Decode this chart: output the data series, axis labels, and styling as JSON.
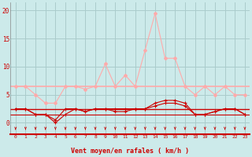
{
  "x": [
    0,
    1,
    2,
    3,
    4,
    5,
    6,
    7,
    8,
    9,
    10,
    11,
    12,
    13,
    14,
    15,
    16,
    17,
    18,
    19,
    20,
    21,
    22,
    23
  ],
  "vent_moyen": [
    2.5,
    2.5,
    1.5,
    1.5,
    0.5,
    2.5,
    2.5,
    2.0,
    2.5,
    2.5,
    2.5,
    2.5,
    2.5,
    2.5,
    3.5,
    4.0,
    4.0,
    3.5,
    1.5,
    1.5,
    2.0,
    2.5,
    2.5,
    1.5
  ],
  "rafales": [
    2.5,
    2.5,
    1.5,
    1.5,
    0.0,
    1.5,
    2.5,
    2.0,
    2.5,
    2.5,
    2.0,
    2.0,
    2.5,
    2.5,
    3.0,
    3.5,
    3.5,
    3.0,
    1.5,
    1.5,
    2.0,
    2.5,
    2.5,
    1.5
  ],
  "rafales_max": [
    6.5,
    6.5,
    5.0,
    3.5,
    3.5,
    6.5,
    6.5,
    6.0,
    6.5,
    10.5,
    6.5,
    8.5,
    6.5,
    13.0,
    19.5,
    11.5,
    11.5,
    6.5,
    5.0,
    6.5,
    5.0,
    6.5,
    5.0,
    5.0
  ],
  "mean_line_pink": 6.5,
  "mean_line_dark": 2.5,
  "mean_line_dark2": 1.5,
  "xlabel": "Vent moyen/en rafales ( km/h )",
  "bg_color": "#cceaea",
  "grid_color": "#aacccc",
  "line_color_dark": "#cc0000",
  "line_color_light": "#ffaaaa",
  "hline_pink": "#ffaaaa",
  "hline_dark": "#cc0000",
  "yticks": [
    0,
    5,
    10,
    15,
    20
  ],
  "ylim": [
    -2.0,
    21.5
  ],
  "xlim": [
    -0.5,
    23.5
  ]
}
